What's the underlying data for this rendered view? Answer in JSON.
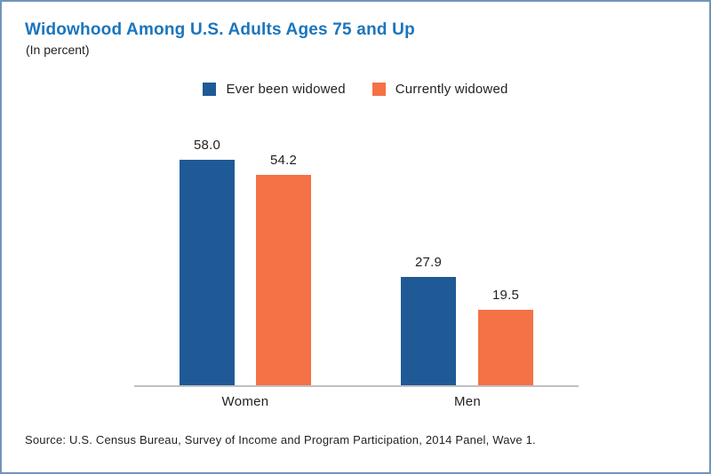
{
  "header": {
    "title": "Widowhood Among U.S. Adults Ages 75 and Up",
    "subtitle": "(In percent)"
  },
  "source_note": "Source: U.S. Census Bureau, Survey of Income and Program Participation, 2014 Panel, Wave 1.",
  "colors": {
    "series1": "#1f5a96",
    "series2": "#f47245",
    "title": "#1b75bc",
    "axis": "#c0c0c0",
    "border": "#7295ba",
    "text": "#231f20"
  },
  "chart_data": {
    "type": "bar",
    "title": "Widowhood Among U.S. Adults Ages 75 and Up",
    "subtitle": "(In percent)",
    "categories": [
      "Women",
      "Men"
    ],
    "series": [
      {
        "name": "Ever been widowed",
        "values": [
          58.0,
          27.9
        ],
        "labels": [
          "58.0",
          "27.9"
        ]
      },
      {
        "name": "Currently widowed",
        "values": [
          54.2,
          19.5
        ],
        "labels": [
          "54.2",
          "19.5"
        ]
      }
    ],
    "ylim": [
      0,
      65
    ],
    "ylabel": "",
    "xlabel": "",
    "grid": false,
    "value_labels_shown": true,
    "legend_position": "top-center"
  }
}
